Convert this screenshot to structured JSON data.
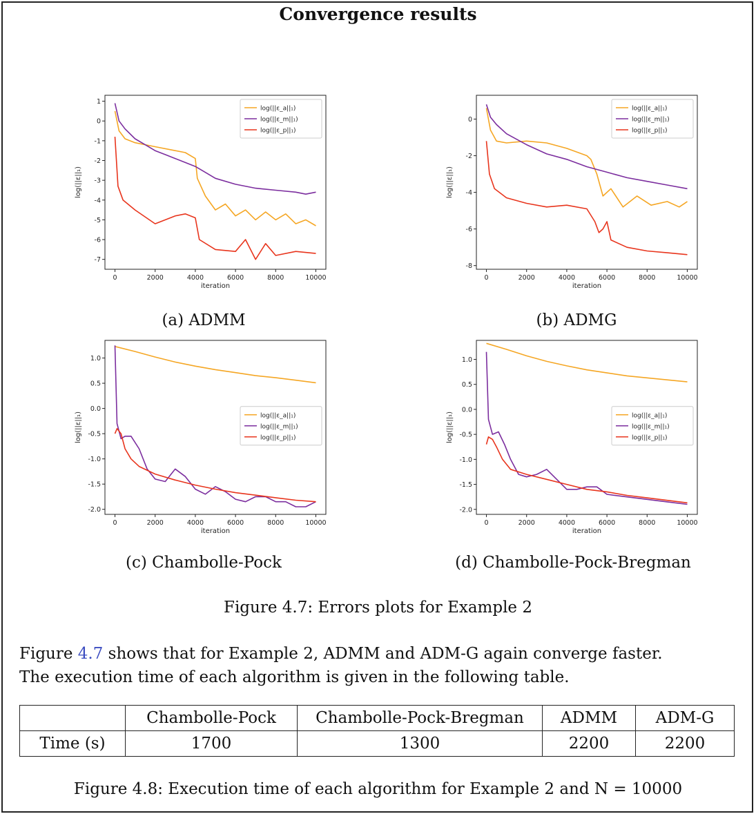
{
  "page_title": "Convergence results",
  "subfigure_captions": [
    "(a) ADMM",
    "(b) ADMG",
    "(c) Chambolle-Pock",
    "(d) Chambolle-Pock-Bregman"
  ],
  "figure_caption": "Figure 4.7: Errors plots for Example 2",
  "paragraph": {
    "before_ref": "Figure ",
    "ref": "4.7",
    "after_ref": " shows that for Example 2, ADMM and ADM-G again converge faster.",
    "line2": "The execution time of each algorithm is given in the following table."
  },
  "table": {
    "header": [
      "",
      "Chambolle-Pock",
      "Chambolle-Pock-Bregman",
      "ADMM",
      "ADM-G"
    ],
    "row": [
      "Time (s)",
      "1700",
      "1300",
      "2200",
      "2200"
    ]
  },
  "table_caption": "Figure 4.8: Execution time of each algorithm for Example 2 and N = 10000",
  "colors": {
    "series_a": "#f5a623",
    "series_m": "#7b2d9e",
    "series_p": "#e8341c",
    "ref_link": "#3b4cc0"
  },
  "chart_data": [
    {
      "type": "line",
      "xlabel": "iteration",
      "ylabel": "log(||ε||₁)",
      "xlim": [
        -500,
        10500
      ],
      "ylim": [
        -7.5,
        1.3
      ],
      "xticks": [
        0,
        2000,
        4000,
        6000,
        8000,
        10000
      ],
      "yticks": [
        1,
        0,
        -1,
        -2,
        -3,
        -4,
        -5,
        -6,
        -7
      ],
      "legend_position": "top-right",
      "series": [
        {
          "name": "log(||ε_a||₁)",
          "x": [
            0,
            200,
            500,
            1000,
            2000,
            3000,
            3500,
            4000,
            4100,
            4500,
            5000,
            5500,
            6000,
            6500,
            7000,
            7500,
            8000,
            8500,
            9000,
            9500,
            10000
          ],
          "y": [
            0.5,
            -0.5,
            -0.9,
            -1.1,
            -1.3,
            -1.5,
            -1.6,
            -1.9,
            -2.9,
            -3.8,
            -4.5,
            -4.2,
            -4.8,
            -4.5,
            -5.0,
            -4.6,
            -5.0,
            -4.7,
            -5.2,
            -5.0,
            -5.3
          ]
        },
        {
          "name": "log(||ε_m||₁)",
          "x": [
            0,
            200,
            500,
            1000,
            1500,
            2000,
            2500,
            3000,
            3500,
            4000,
            4500,
            5000,
            6000,
            7000,
            8000,
            9000,
            9500,
            10000
          ],
          "y": [
            0.9,
            0.0,
            -0.4,
            -0.9,
            -1.2,
            -1.5,
            -1.7,
            -1.9,
            -2.1,
            -2.3,
            -2.6,
            -2.9,
            -3.2,
            -3.4,
            -3.5,
            -3.6,
            -3.7,
            -3.6
          ]
        },
        {
          "name": "log(||ε_p||₁)",
          "x": [
            0,
            150,
            400,
            1000,
            2000,
            3000,
            3500,
            4000,
            4200,
            5000,
            6000,
            6500,
            7000,
            7500,
            8000,
            9000,
            10000
          ],
          "y": [
            -0.8,
            -3.3,
            -4.0,
            -4.5,
            -5.2,
            -4.8,
            -4.7,
            -4.9,
            -6.0,
            -6.5,
            -6.6,
            -6.0,
            -7.0,
            -6.2,
            -6.8,
            -6.6,
            -6.7
          ]
        }
      ]
    },
    {
      "type": "line",
      "xlabel": "iteration",
      "ylabel": "log(||ε||₁)",
      "xlim": [
        -500,
        10500
      ],
      "ylim": [
        -8.2,
        1.3
      ],
      "xticks": [
        0,
        2000,
        4000,
        6000,
        8000,
        10000
      ],
      "yticks": [
        0,
        -2,
        -4,
        -6,
        -8
      ],
      "legend_position": "top-right",
      "series": [
        {
          "name": "log(||ε_a||₁)",
          "x": [
            0,
            200,
            500,
            1000,
            2000,
            3000,
            4000,
            5000,
            5200,
            5500,
            5800,
            6200,
            6800,
            7500,
            8200,
            9000,
            9600,
            10000
          ],
          "y": [
            0.6,
            -0.6,
            -1.2,
            -1.3,
            -1.2,
            -1.3,
            -1.6,
            -2.0,
            -2.2,
            -3.0,
            -4.2,
            -3.8,
            -4.8,
            -4.2,
            -4.7,
            -4.5,
            -4.8,
            -4.5
          ]
        },
        {
          "name": "log(||ε_m||₁)",
          "x": [
            0,
            200,
            500,
            1000,
            2000,
            3000,
            4000,
            5000,
            6000,
            7000,
            8000,
            9000,
            10000
          ],
          "y": [
            0.8,
            0.1,
            -0.3,
            -0.8,
            -1.4,
            -1.9,
            -2.2,
            -2.6,
            -2.9,
            -3.2,
            -3.4,
            -3.6,
            -3.8
          ]
        },
        {
          "name": "log(||ε_p||₁)",
          "x": [
            0,
            150,
            400,
            1000,
            2000,
            3000,
            4000,
            5000,
            5400,
            5600,
            5800,
            6000,
            6200,
            7000,
            8000,
            9000,
            10000
          ],
          "y": [
            -1.2,
            -3.0,
            -3.8,
            -4.3,
            -4.6,
            -4.8,
            -4.7,
            -4.9,
            -5.6,
            -6.2,
            -6.0,
            -5.6,
            -6.6,
            -7.0,
            -7.2,
            -7.3,
            -7.4
          ]
        }
      ]
    },
    {
      "type": "line",
      "xlabel": "iteration",
      "ylabel": "log(||ε||₁)",
      "xlim": [
        -500,
        10500
      ],
      "ylim": [
        -2.1,
        1.35
      ],
      "xticks": [
        0,
        2000,
        4000,
        6000,
        8000,
        10000
      ],
      "yticks": [
        1.0,
        0.5,
        0.0,
        -0.5,
        -1.0,
        -1.5,
        -2.0
      ],
      "ytick_labels": [
        "1.0",
        "0.5",
        "0.0",
        "-0.5",
        "-1.0",
        "-1.5",
        "-2.0"
      ],
      "legend_position": "center-right",
      "series": [
        {
          "name": "log(||ε_a||₁)",
          "x": [
            0,
            1000,
            2000,
            3000,
            4000,
            5000,
            6000,
            7000,
            8000,
            9000,
            10000
          ],
          "y": [
            1.23,
            1.13,
            1.02,
            0.92,
            0.84,
            0.77,
            0.71,
            0.65,
            0.61,
            0.56,
            0.51
          ]
        },
        {
          "name": "log(||ε_m||₁)",
          "x": [
            0,
            100,
            300,
            500,
            800,
            1200,
            1600,
            2000,
            2500,
            3000,
            3500,
            4000,
            4500,
            5000,
            5500,
            6000,
            6500,
            7000,
            7500,
            8000,
            8500,
            9000,
            9500,
            10000
          ],
          "y": [
            1.25,
            -0.3,
            -0.6,
            -0.55,
            -0.55,
            -0.8,
            -1.2,
            -1.4,
            -1.45,
            -1.2,
            -1.35,
            -1.6,
            -1.7,
            -1.55,
            -1.65,
            -1.8,
            -1.85,
            -1.75,
            -1.75,
            -1.85,
            -1.85,
            -1.95,
            -1.95,
            -1.85
          ]
        },
        {
          "name": "log(||ε_p||₁)",
          "x": [
            0,
            100,
            300,
            500,
            800,
            1200,
            2000,
            3000,
            4000,
            5000,
            6000,
            7000,
            8000,
            9000,
            10000
          ],
          "y": [
            -0.5,
            -0.4,
            -0.5,
            -0.8,
            -1.0,
            -1.15,
            -1.3,
            -1.42,
            -1.52,
            -1.6,
            -1.67,
            -1.72,
            -1.77,
            -1.82,
            -1.85
          ]
        }
      ]
    },
    {
      "type": "line",
      "xlabel": "iteration",
      "ylabel": "log(||ε||₁)",
      "xlim": [
        -500,
        10500
      ],
      "ylim": [
        -2.1,
        1.38
      ],
      "xticks": [
        0,
        2000,
        4000,
        6000,
        8000,
        10000
      ],
      "yticks": [
        1.0,
        0.5,
        0.0,
        -0.5,
        -1.0,
        -1.5,
        -2.0
      ],
      "ytick_labels": [
        "1.0",
        "0.5",
        "0.0",
        "-0.5",
        "-1.0",
        "-1.5",
        "-2.0"
      ],
      "legend_position": "center-right",
      "series": [
        {
          "name": "log(||ε_a||₁)",
          "x": [
            0,
            1000,
            2000,
            3000,
            4000,
            5000,
            6000,
            7000,
            8000,
            9000,
            10000
          ],
          "y": [
            1.32,
            1.2,
            1.07,
            0.96,
            0.87,
            0.79,
            0.73,
            0.67,
            0.63,
            0.59,
            0.55
          ]
        },
        {
          "name": "log(||ε_m||₁)",
          "x": [
            0,
            100,
            300,
            600,
            900,
            1200,
            1600,
            2000,
            2500,
            3000,
            3500,
            4000,
            4500,
            5000,
            5500,
            6000,
            7000,
            8000,
            9000,
            10000
          ],
          "y": [
            1.15,
            -0.2,
            -0.5,
            -0.45,
            -0.7,
            -1.0,
            -1.3,
            -1.35,
            -1.3,
            -1.2,
            -1.4,
            -1.6,
            -1.6,
            -1.55,
            -1.55,
            -1.7,
            -1.75,
            -1.8,
            -1.85,
            -1.9
          ]
        },
        {
          "name": "log(||ε_p||₁)",
          "x": [
            0,
            100,
            300,
            500,
            800,
            1200,
            2000,
            3000,
            4000,
            5000,
            6000,
            7000,
            8000,
            9000,
            10000
          ],
          "y": [
            -0.7,
            -0.55,
            -0.6,
            -0.75,
            -1.0,
            -1.2,
            -1.3,
            -1.4,
            -1.5,
            -1.6,
            -1.65,
            -1.72,
            -1.77,
            -1.82,
            -1.87
          ]
        }
      ]
    }
  ]
}
